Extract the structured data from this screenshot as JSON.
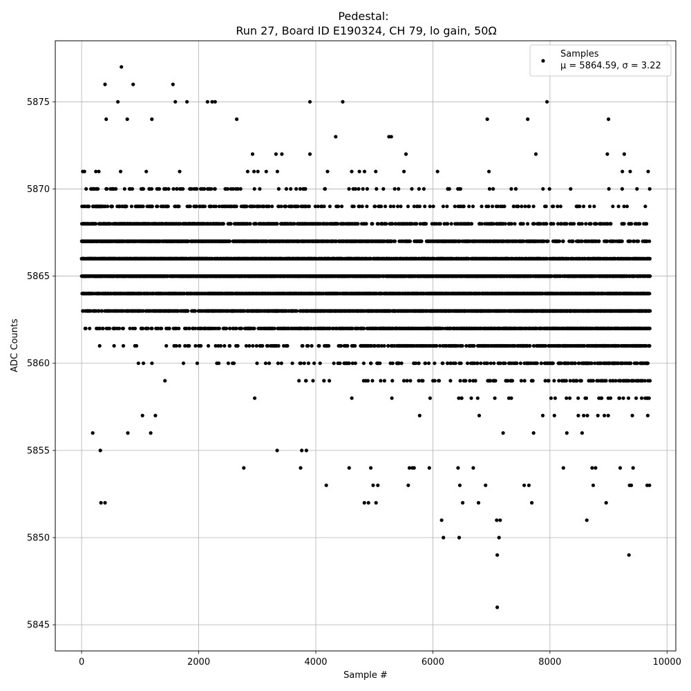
{
  "chart_data": {
    "type": "scatter",
    "title": "Pedestal:",
    "subtitle": "Run 27, Board ID E190324, CH 79, lo gain, 50Ω",
    "xlabel": "Sample #",
    "ylabel": "ADC Counts",
    "xlim": [
      -450,
      10150
    ],
    "ylim": [
      5843.5,
      5878.5
    ],
    "xticks": [
      0,
      2000,
      4000,
      6000,
      8000,
      10000
    ],
    "yticks": [
      5845,
      5850,
      5855,
      5860,
      5865,
      5870,
      5875
    ],
    "grid": true,
    "legend": {
      "position": "top-right",
      "name": "Samples",
      "stats": "μ = 5864.59, σ = 3.22"
    },
    "x_range": [
      0,
      9710
    ],
    "n_samples_estimate": 9710,
    "mean": 5864.59,
    "sigma": 3.22,
    "dense_levels": [
      5862,
      5863,
      5864,
      5865,
      5866,
      5867,
      5868,
      5869
    ],
    "sparse_levels": [
      5860,
      5861,
      5870,
      5871
    ],
    "series": [
      {
        "name": "Samples",
        "color": "#000000",
        "outliers": [
          {
            "x": 680,
            "y": 5877
          },
          {
            "x": 400,
            "y": 5876
          },
          {
            "x": 880,
            "y": 5876
          },
          {
            "x": 1560,
            "y": 5876
          },
          {
            "x": 620,
            "y": 5875
          },
          {
            "x": 1600,
            "y": 5875
          },
          {
            "x": 1800,
            "y": 5875
          },
          {
            "x": 2150,
            "y": 5875
          },
          {
            "x": 2230,
            "y": 5875
          },
          {
            "x": 2280,
            "y": 5875
          },
          {
            "x": 3900,
            "y": 5875
          },
          {
            "x": 4460,
            "y": 5875
          },
          {
            "x": 7950,
            "y": 5875
          },
          {
            "x": 420,
            "y": 5874
          },
          {
            "x": 780,
            "y": 5874
          },
          {
            "x": 1200,
            "y": 5874
          },
          {
            "x": 2650,
            "y": 5874
          },
          {
            "x": 6930,
            "y": 5874
          },
          {
            "x": 7620,
            "y": 5874
          },
          {
            "x": 9000,
            "y": 5874
          },
          {
            "x": 4340,
            "y": 5873
          },
          {
            "x": 5250,
            "y": 5873
          },
          {
            "x": 5290,
            "y": 5873
          },
          {
            "x": 2920,
            "y": 5872
          },
          {
            "x": 3320,
            "y": 5872
          },
          {
            "x": 3420,
            "y": 5872
          },
          {
            "x": 3900,
            "y": 5872
          },
          {
            "x": 5540,
            "y": 5872
          },
          {
            "x": 7760,
            "y": 5872
          },
          {
            "x": 8980,
            "y": 5872
          },
          {
            "x": 9270,
            "y": 5872
          },
          {
            "x": 2770,
            "y": 5854
          },
          {
            "x": 3340,
            "y": 5855
          },
          {
            "x": 190,
            "y": 5856
          },
          {
            "x": 790,
            "y": 5856
          },
          {
            "x": 1180,
            "y": 5856
          },
          {
            "x": 320,
            "y": 5855
          },
          {
            "x": 330,
            "y": 5852
          },
          {
            "x": 400,
            "y": 5852
          },
          {
            "x": 1040,
            "y": 5857
          },
          {
            "x": 1260,
            "y": 5857
          },
          {
            "x": 3740,
            "y": 5854
          },
          {
            "x": 3760,
            "y": 5855
          },
          {
            "x": 3840,
            "y": 5855
          },
          {
            "x": 4180,
            "y": 5853
          },
          {
            "x": 4570,
            "y": 5854
          },
          {
            "x": 4830,
            "y": 5852
          },
          {
            "x": 4900,
            "y": 5852
          },
          {
            "x": 4940,
            "y": 5854
          },
          {
            "x": 4980,
            "y": 5853
          },
          {
            "x": 5030,
            "y": 5852
          },
          {
            "x": 5060,
            "y": 5853
          },
          {
            "x": 5580,
            "y": 5853
          },
          {
            "x": 5600,
            "y": 5854
          },
          {
            "x": 5650,
            "y": 5854
          },
          {
            "x": 5680,
            "y": 5854
          },
          {
            "x": 5940,
            "y": 5854
          },
          {
            "x": 6150,
            "y": 5851
          },
          {
            "x": 6180,
            "y": 5850
          },
          {
            "x": 6430,
            "y": 5854
          },
          {
            "x": 6450,
            "y": 5850
          },
          {
            "x": 6460,
            "y": 5853
          },
          {
            "x": 6510,
            "y": 5852
          },
          {
            "x": 6690,
            "y": 5854
          },
          {
            "x": 6780,
            "y": 5852
          },
          {
            "x": 6900,
            "y": 5853
          },
          {
            "x": 7090,
            "y": 5851
          },
          {
            "x": 7100,
            "y": 5849
          },
          {
            "x": 7100,
            "y": 5846
          },
          {
            "x": 7130,
            "y": 5850
          },
          {
            "x": 7150,
            "y": 5851
          },
          {
            "x": 7560,
            "y": 5853
          },
          {
            "x": 7640,
            "y": 5853
          },
          {
            "x": 7690,
            "y": 5852
          },
          {
            "x": 8230,
            "y": 5854
          },
          {
            "x": 8630,
            "y": 5851
          },
          {
            "x": 8720,
            "y": 5854
          },
          {
            "x": 8740,
            "y": 5853
          },
          {
            "x": 8780,
            "y": 5854
          },
          {
            "x": 8960,
            "y": 5852
          },
          {
            "x": 9200,
            "y": 5854
          },
          {
            "x": 9350,
            "y": 5849
          },
          {
            "x": 9360,
            "y": 5853
          },
          {
            "x": 9390,
            "y": 5853
          },
          {
            "x": 9420,
            "y": 5854
          },
          {
            "x": 9660,
            "y": 5853
          },
          {
            "x": 9700,
            "y": 5853
          }
        ]
      }
    ]
  }
}
